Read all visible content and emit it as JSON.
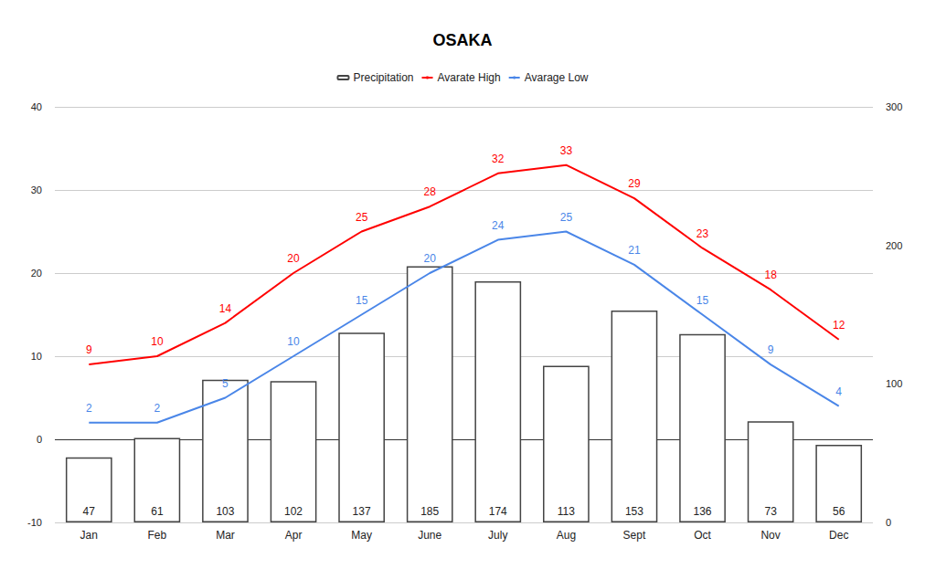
{
  "chart_data": {
    "type": "bar",
    "title": "OSAKA",
    "categories": [
      "Jan",
      "Feb",
      "Mar",
      "Apr",
      "May",
      "June",
      "July",
      "Aug",
      "Sept",
      "Oct",
      "Nov",
      "Dec"
    ],
    "series": [
      {
        "name": "Precipitation",
        "type": "bar",
        "axis": "y2",
        "color": "#ffffff",
        "values": [
          47,
          61,
          103,
          102,
          137,
          185,
          174,
          113,
          153,
          136,
          73,
          56
        ]
      },
      {
        "name": "Avarate High",
        "type": "line",
        "color": "#ff0000",
        "values": [
          9,
          10,
          14,
          20,
          25,
          28,
          32,
          33,
          29,
          23,
          18,
          12
        ]
      },
      {
        "name": "Avarage Low",
        "type": "line",
        "color": "#4a86e8",
        "values": [
          2,
          2,
          5,
          10,
          15,
          20,
          24,
          25,
          21,
          15,
          9,
          4
        ]
      }
    ],
    "ylim": [
      -10,
      40
    ],
    "yticks": [
      -10,
      0,
      10,
      20,
      30,
      40
    ],
    "y2lim": [
      0,
      300
    ],
    "y2ticks": [
      0,
      100,
      200,
      300
    ],
    "grid": true,
    "legend": "top",
    "data_labels": true
  }
}
